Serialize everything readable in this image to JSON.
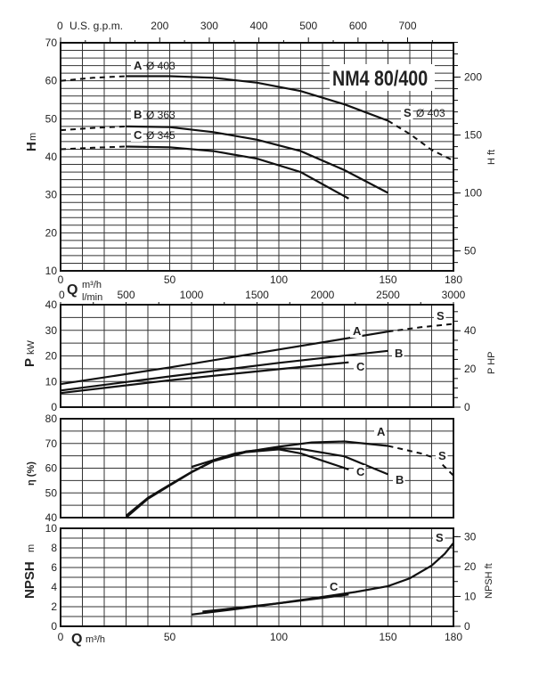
{
  "chart_data": [
    {
      "type": "line",
      "title": "NM4 80/400",
      "panel": "head",
      "xlabel": "Q m³/h",
      "x_unit": "m³/h",
      "ylabel": "H m",
      "ylabel_right": "H ft",
      "xlabel_top": "U.S. g.p.m.",
      "xlim": [
        0,
        180
      ],
      "ylim": [
        10,
        70
      ],
      "x_ticks": [
        0,
        50,
        100,
        150,
        180
      ],
      "y_ticks": [
        10,
        20,
        30,
        40,
        50,
        60,
        70
      ],
      "y_right_ticks": [
        50,
        100,
        150,
        200
      ],
      "top_ticks": [
        0,
        200,
        300,
        400,
        500,
        600,
        700
      ],
      "grid": true,
      "series": [
        {
          "name": "A Ø 403",
          "label": "A",
          "dia": "Ø 403",
          "points": [
            [
              0,
              60
            ],
            [
              15,
              60.8
            ],
            [
              30,
              61.2
            ],
            [
              50,
              61.2
            ],
            [
              70,
              60.8
            ],
            [
              90,
              59.5
            ],
            [
              110,
              57.3
            ],
            [
              130,
              53.8
            ],
            [
              150,
              49.5
            ]
          ],
          "dashed_until": 30
        },
        {
          "name": "B Ø 363",
          "label": "B",
          "dia": "Ø 363",
          "points": [
            [
              0,
              47
            ],
            [
              15,
              47.6
            ],
            [
              30,
              48
            ],
            [
              50,
              47.8
            ],
            [
              70,
              46.5
            ],
            [
              90,
              44.5
            ],
            [
              110,
              41.5
            ],
            [
              130,
              36.5
            ],
            [
              150,
              30.5
            ]
          ],
          "dashed_until": 30
        },
        {
          "name": "C Ø 345",
          "label": "C",
          "dia": "Ø 345",
          "points": [
            [
              0,
              42
            ],
            [
              15,
              42.4
            ],
            [
              30,
              42.7
            ],
            [
              50,
              42.5
            ],
            [
              70,
              41.5
            ],
            [
              90,
              39.5
            ],
            [
              110,
              36
            ],
            [
              132,
              29
            ]
          ],
          "dashed_until": 30
        },
        {
          "name": "S Ø 403",
          "label": "S",
          "dia": "Ø 403",
          "points": [
            [
              150,
              49.5
            ],
            [
              160,
              46
            ],
            [
              170,
              41.8
            ],
            [
              180,
              39
            ]
          ],
          "dashed_until": 180
        }
      ]
    },
    {
      "type": "line",
      "panel": "power",
      "xlabel": "Q m³/h",
      "xlabel_top": "l/min",
      "ylabel": "P kW",
      "ylabel_right": "P  HP",
      "xlim": [
        0,
        180
      ],
      "ylim": [
        0,
        40
      ],
      "y_ticks": [
        0,
        10,
        20,
        30,
        40
      ],
      "y_right_ticks": [
        0,
        20,
        40
      ],
      "top_ticks": [
        0,
        500,
        1000,
        1500,
        2000,
        2500,
        3000
      ],
      "grid": true,
      "series": [
        {
          "label": "A",
          "points": [
            [
              0,
              9
            ],
            [
              50,
              15.5
            ],
            [
              100,
              22.5
            ],
            [
              150,
              29.5
            ]
          ],
          "dashed_until": 0
        },
        {
          "label": "S",
          "points": [
            [
              150,
              29.5
            ],
            [
              165,
              31.2
            ],
            [
              180,
              32.5
            ]
          ],
          "dashed_until": 180
        },
        {
          "label": "B",
          "points": [
            [
              0,
              6.5
            ],
            [
              50,
              12
            ],
            [
              100,
              17.3
            ],
            [
              150,
              22
            ]
          ],
          "dashed_until": 0
        },
        {
          "label": "C",
          "points": [
            [
              0,
              5.5
            ],
            [
              50,
              10.5
            ],
            [
              100,
              14.8
            ],
            [
              132,
              17.5
            ]
          ],
          "dashed_until": 0
        }
      ]
    },
    {
      "type": "line",
      "panel": "efficiency",
      "ylabel": "η (%)",
      "xlim": [
        0,
        180
      ],
      "ylim": [
        40,
        80
      ],
      "y_ticks": [
        40,
        50,
        60,
        70,
        80
      ],
      "grid": true,
      "series": [
        {
          "label": "A",
          "points": [
            [
              60,
              60.5
            ],
            [
              80,
              66
            ],
            [
              100,
              68.7
            ],
            [
              115,
              70.4
            ],
            [
              130,
              70.8
            ],
            [
              150,
              69
            ]
          ],
          "dashed_until": 0
        },
        {
          "label": "S",
          "points": [
            [
              150,
              69
            ],
            [
              165,
              66
            ],
            [
              172,
              64
            ],
            [
              180,
              57
            ]
          ],
          "dashed_until": 180
        },
        {
          "label": "B",
          "points": [
            [
              30,
              40.8
            ],
            [
              40,
              48
            ],
            [
              50,
              53.3
            ],
            [
              60,
              58.5
            ],
            [
              70,
              63
            ],
            [
              85,
              66.8
            ],
            [
              100,
              68
            ],
            [
              110,
              67.8
            ],
            [
              130,
              64.8
            ],
            [
              150,
              57.5
            ]
          ],
          "dashed_until": 0
        },
        {
          "label": "C",
          "points": [
            [
              30,
              40
            ],
            [
              40,
              47.6
            ],
            [
              50,
              53
            ],
            [
              60,
              58.3
            ],
            [
              70,
              62.8
            ],
            [
              85,
              66.5
            ],
            [
              100,
              67.6
            ],
            [
              110,
              66
            ],
            [
              132,
              59.5
            ]
          ],
          "dashed_until": 0
        }
      ]
    },
    {
      "type": "line",
      "panel": "npsh",
      "xlabel": "Q m³/h",
      "ylabel": "NPSH m",
      "ylabel_right": "NPSH ft",
      "xlim": [
        0,
        180
      ],
      "ylim": [
        0,
        10
      ],
      "x_ticks": [
        0,
        50,
        100,
        150,
        180
      ],
      "y_ticks": [
        0,
        2,
        4,
        6,
        8,
        10
      ],
      "y_right_ticks": [
        0,
        10,
        20,
        30
      ],
      "grid": true,
      "series": [
        {
          "label": "S",
          "points": [
            [
              60,
              1.2
            ],
            [
              80,
              1.75
            ],
            [
              100,
              2.35
            ],
            [
              120,
              3.0
            ],
            [
              135,
              3.5
            ],
            [
              150,
              4.1
            ],
            [
              160,
              4.9
            ],
            [
              170,
              6.2
            ],
            [
              176,
              7.4
            ],
            [
              180,
              8.5
            ]
          ],
          "dashed_until": 0
        },
        {
          "label": "C",
          "points": [
            [
              65,
              1.5
            ],
            [
              80,
              1.85
            ],
            [
              100,
              2.35
            ],
            [
              120,
              2.9
            ],
            [
              132,
              3.25
            ]
          ],
          "dashed_until": 0
        }
      ]
    }
  ],
  "labels": {
    "model": "NM4 80/400",
    "q_unit": "m³/h",
    "q_symbol": "Q",
    "lmin_unit": "l/min",
    "gpm_unit": "U.S. g.p.m.",
    "h_symbol": "H",
    "h_unit": "m",
    "h_ft": "H ft",
    "p_symbol": "P",
    "p_unit": "kW",
    "p_hp": "P  HP",
    "eta": "η (%)",
    "npsh_symbol": "NPSH",
    "npsh_unit": "m",
    "npsh_ft": "NPSH ft"
  },
  "colors": {
    "line": "#1a1a1a",
    "grid": "#333333",
    "background": "#ffffff"
  }
}
